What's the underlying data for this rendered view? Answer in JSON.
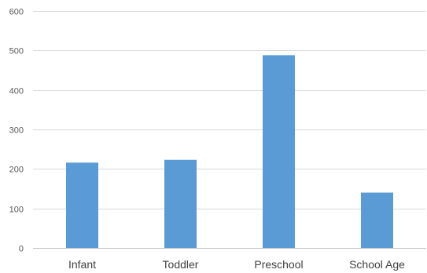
{
  "chart_data": {
    "type": "bar",
    "title": "",
    "xlabel": "",
    "ylabel": "",
    "categories": [
      "Infant",
      "Toddler",
      "Preschool",
      "School Age"
    ],
    "values": [
      216,
      223,
      488,
      140
    ],
    "ylim": [
      0,
      600
    ],
    "yticks": [
      0,
      100,
      200,
      300,
      400,
      500,
      600
    ],
    "ytick_labels": [
      "0",
      "100",
      "200",
      "300",
      "400",
      "500",
      "600"
    ],
    "grid": true,
    "legend": "none",
    "colors": {
      "bar": "#5b9bd5",
      "grid": "#d9d9d9",
      "axis": "#bfbfbf"
    }
  }
}
